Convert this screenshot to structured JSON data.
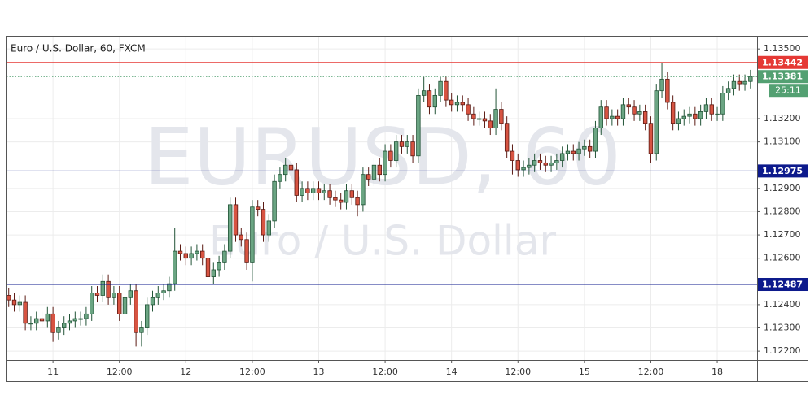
{
  "chart_data": {
    "type": "candlestick",
    "title": "Euro / U.S. Dollar, 60, FXCM",
    "watermark": "EURUSD, 60",
    "watermark_subtitle": "Euro / U.S. Dollar",
    "countdown": "25:11",
    "up_color": "#6ba583",
    "down_color": "#d75442",
    "up_border": "#225437",
    "down_border": "#5b1a13",
    "grid": true,
    "xlim": [
      -0.4,
      135.2
    ],
    "xticks": [
      {
        "value": 8,
        "label": "11"
      },
      {
        "value": 20,
        "label": "12:00"
      },
      {
        "value": 32,
        "label": "12"
      },
      {
        "value": 44,
        "label": "12:00"
      },
      {
        "value": 56,
        "label": "13"
      },
      {
        "value": 68,
        "label": "12:00"
      },
      {
        "value": 80,
        "label": "14"
      },
      {
        "value": 92,
        "label": "12:00"
      },
      {
        "value": 104,
        "label": "15"
      },
      {
        "value": 116,
        "label": "12:00"
      },
      {
        "value": 128,
        "label": "18"
      }
    ],
    "ylim": [
      1.12162,
      1.13553
    ],
    "yticks": [
      {
        "value": 1.122,
        "label": "1.12200"
      },
      {
        "value": 1.123,
        "label": "1.12300"
      },
      {
        "value": 1.124,
        "label": "1.12400"
      },
      {
        "value": 1.126,
        "label": "1.12600"
      },
      {
        "value": 1.127,
        "label": "1.12700"
      },
      {
        "value": 1.128,
        "label": "1.12800"
      },
      {
        "value": 1.129,
        "label": "1.12900"
      },
      {
        "value": 1.131,
        "label": "1.13100"
      },
      {
        "value": 1.132,
        "label": "1.13200"
      },
      {
        "value": 1.135,
        "label": "1.13500"
      }
    ],
    "levels": [
      {
        "value": 1.13442,
        "color": "#e53935",
        "style": "solid"
      },
      {
        "value": 1.13381,
        "color": "#53a072",
        "style": "dotted"
      },
      {
        "value": 1.12975,
        "color": "#0d1a8c",
        "style": "solid"
      },
      {
        "value": 1.12487,
        "color": "#0d1a8c",
        "style": "solid"
      }
    ],
    "open": [
      1.1244,
      1.1242,
      1.124,
      1.1241,
      1.1232,
      1.1232,
      1.1234,
      1.1233,
      1.1236,
      1.1228,
      1.123,
      1.1232,
      1.1233,
      1.1234,
      1.1234,
      1.1236,
      1.1245,
      1.1244,
      1.125,
      1.1243,
      1.1245,
      1.1236,
      1.1243,
      1.1246,
      1.1228,
      1.123,
      1.124,
      1.1243,
      1.1245,
      1.1246,
      1.1249,
      1.1263,
      1.1262,
      1.126,
      1.1262,
      1.1263,
      1.126,
      1.1252,
      1.1255,
      1.1258,
      1.1263,
      1.1283,
      1.127,
      1.1268,
      1.1258,
      1.1282,
      1.1281,
      1.127,
      1.1276,
      1.1293,
      1.1296,
      1.13,
      1.1298,
      1.1287,
      1.129,
      1.1288,
      1.129,
      1.1288,
      1.1289,
      1.1286,
      1.1285,
      1.1284,
      1.1289,
      1.1286,
      1.1283,
      1.1296,
      1.1294,
      1.13,
      1.1296,
      1.1306,
      1.1302,
      1.131,
      1.1308,
      1.131,
      1.1304,
      1.133,
      1.1332,
      1.1325,
      1.133,
      1.1336,
      1.1328,
      1.1326,
      1.1327,
      1.1326,
      1.1322,
      1.132,
      1.132,
      1.1319,
      1.1316,
      1.1324,
      1.1318,
      1.1306,
      1.1302,
      1.1298,
      1.1299,
      1.13,
      1.1302,
      1.1301,
      1.13,
      1.1301,
      1.1302,
      1.1305,
      1.1306,
      1.1305,
      1.1307,
      1.1308,
      1.1306,
      1.1316,
      1.1325,
      1.132,
      1.1321,
      1.132,
      1.1326,
      1.1325,
      1.1322,
      1.1323,
      1.1318,
      1.1305,
      1.1332,
      1.1337,
      1.1327,
      1.1318,
      1.132,
      1.1321,
      1.1322,
      1.132,
      1.1323,
      1.1326,
      1.1322,
      1.1322,
      1.1331,
      1.1333,
      1.1336,
      1.1335,
      1.1336
    ],
    "high": [
      1.1247,
      1.1245,
      1.1244,
      1.1244,
      1.1235,
      1.1237,
      1.1237,
      1.1239,
      1.1239,
      1.1233,
      1.1235,
      1.1236,
      1.1237,
      1.1237,
      1.1239,
      1.1248,
      1.1248,
      1.1253,
      1.1253,
      1.1248,
      1.1248,
      1.1246,
      1.1249,
      1.1249,
      1.1233,
      1.1243,
      1.1246,
      1.1248,
      1.1249,
      1.1252,
      1.1273,
      1.1266,
      1.1265,
      1.1265,
      1.1266,
      1.1266,
      1.1263,
      1.1258,
      1.1261,
      1.1266,
      1.1286,
      1.1286,
      1.1273,
      1.1271,
      1.1285,
      1.1285,
      1.1284,
      1.1279,
      1.1296,
      1.1299,
      1.1303,
      1.1303,
      1.1301,
      1.1293,
      1.1293,
      1.1293,
      1.1293,
      1.1292,
      1.1292,
      1.1289,
      1.1288,
      1.1292,
      1.1292,
      1.1289,
      1.1299,
      1.1299,
      1.1303,
      1.1303,
      1.1309,
      1.1309,
      1.1313,
      1.1313,
      1.1313,
      1.1313,
      1.1333,
      1.1338,
      1.1335,
      1.1333,
      1.1338,
      1.1338,
      1.1331,
      1.133,
      1.133,
      1.1329,
      1.1325,
      1.1323,
      1.1323,
      1.1322,
      1.1333,
      1.1327,
      1.1321,
      1.1309,
      1.1305,
      1.1302,
      1.1303,
      1.1305,
      1.1305,
      1.1304,
      1.1304,
      1.1305,
      1.1308,
      1.1309,
      1.1309,
      1.131,
      1.1311,
      1.1311,
      1.1319,
      1.1328,
      1.1328,
      1.1324,
      1.1324,
      1.1329,
      1.1329,
      1.1328,
      1.1326,
      1.1326,
      1.1321,
      1.1335,
      1.1344,
      1.134,
      1.133,
      1.1323,
      1.1324,
      1.1325,
      1.1325,
      1.1326,
      1.1329,
      1.1329,
      1.1325,
      1.1334,
      1.1336,
      1.1339,
      1.1339,
      1.1339,
      1.1341
    ],
    "low": [
      1.1239,
      1.1237,
      1.1237,
      1.1229,
      1.1229,
      1.1229,
      1.123,
      1.123,
      1.1224,
      1.1225,
      1.1227,
      1.1229,
      1.123,
      1.1231,
      1.1231,
      1.1233,
      1.1241,
      1.1241,
      1.124,
      1.124,
      1.1233,
      1.1233,
      1.124,
      1.1222,
      1.1222,
      1.1227,
      1.1237,
      1.124,
      1.1242,
      1.1243,
      1.1246,
      1.1259,
      1.1257,
      1.1257,
      1.1259,
      1.1257,
      1.1249,
      1.1249,
      1.1252,
      1.1255,
      1.126,
      1.1267,
      1.1265,
      1.1255,
      1.125,
      1.1278,
      1.1267,
      1.1267,
      1.1273,
      1.129,
      1.1293,
      1.1295,
      1.1284,
      1.1284,
      1.1285,
      1.1285,
      1.1285,
      1.1285,
      1.1283,
      1.1282,
      1.1281,
      1.1281,
      1.1283,
      1.1278,
      1.128,
      1.1291,
      1.1291,
      1.1293,
      1.1293,
      1.1299,
      1.1299,
      1.1305,
      1.1305,
      1.1301,
      1.1301,
      1.1327,
      1.1322,
      1.1322,
      1.1327,
      1.1325,
      1.1323,
      1.1323,
      1.1323,
      1.1319,
      1.1317,
      1.1317,
      1.1316,
      1.1313,
      1.1313,
      1.1315,
      1.1303,
      1.1296,
      1.1295,
      1.1295,
      1.1296,
      1.1297,
      1.1298,
      1.1297,
      1.1297,
      1.1298,
      1.1299,
      1.1302,
      1.1302,
      1.1302,
      1.1304,
      1.1303,
      1.1303,
      1.1313,
      1.1317,
      1.1317,
      1.1317,
      1.1317,
      1.1322,
      1.1319,
      1.1319,
      1.1315,
      1.1301,
      1.1302,
      1.1329,
      1.1324,
      1.1315,
      1.1315,
      1.1317,
      1.1318,
      1.1317,
      1.1317,
      1.132,
      1.1319,
      1.1319,
      1.1319,
      1.1328,
      1.133,
      1.1332,
      1.1332,
      1.1333
    ],
    "close": [
      1.1242,
      1.124,
      1.1241,
      1.1232,
      1.1232,
      1.1234,
      1.1233,
      1.1236,
      1.1228,
      1.123,
      1.1232,
      1.1233,
      1.1234,
      1.1234,
      1.1236,
      1.1245,
      1.1244,
      1.125,
      1.1243,
      1.1245,
      1.1236,
      1.1243,
      1.1246,
      1.1228,
      1.123,
      1.124,
      1.1243,
      1.1245,
      1.1246,
      1.1249,
      1.1263,
      1.1262,
      1.126,
      1.1262,
      1.1263,
      1.126,
      1.1252,
      1.1255,
      1.1258,
      1.1263,
      1.1283,
      1.127,
      1.1268,
      1.1258,
      1.1282,
      1.1281,
      1.127,
      1.1276,
      1.1293,
      1.1296,
      1.13,
      1.1298,
      1.1287,
      1.129,
      1.1288,
      1.129,
      1.1288,
      1.1289,
      1.1286,
      1.1285,
      1.1284,
      1.1289,
      1.1286,
      1.1283,
      1.1296,
      1.1294,
      1.13,
      1.1296,
      1.1306,
      1.1302,
      1.131,
      1.1308,
      1.131,
      1.1304,
      1.133,
      1.1332,
      1.1325,
      1.133,
      1.1336,
      1.1328,
      1.1326,
      1.1327,
      1.1326,
      1.1322,
      1.132,
      1.132,
      1.1319,
      1.1316,
      1.1324,
      1.1318,
      1.1306,
      1.1302,
      1.1298,
      1.1299,
      1.13,
      1.1302,
      1.1301,
      1.13,
      1.1301,
      1.1302,
      1.1305,
      1.1306,
      1.1305,
      1.1307,
      1.1308,
      1.1306,
      1.1316,
      1.1325,
      1.132,
      1.1321,
      1.132,
      1.1326,
      1.1325,
      1.1322,
      1.1323,
      1.1318,
      1.1305,
      1.1332,
      1.1337,
      1.1327,
      1.1318,
      1.132,
      1.1321,
      1.1322,
      1.132,
      1.1323,
      1.1326,
      1.1322,
      1.1322,
      1.1331,
      1.1333,
      1.1336,
      1.1335,
      1.1336,
      1.13381
    ]
  }
}
